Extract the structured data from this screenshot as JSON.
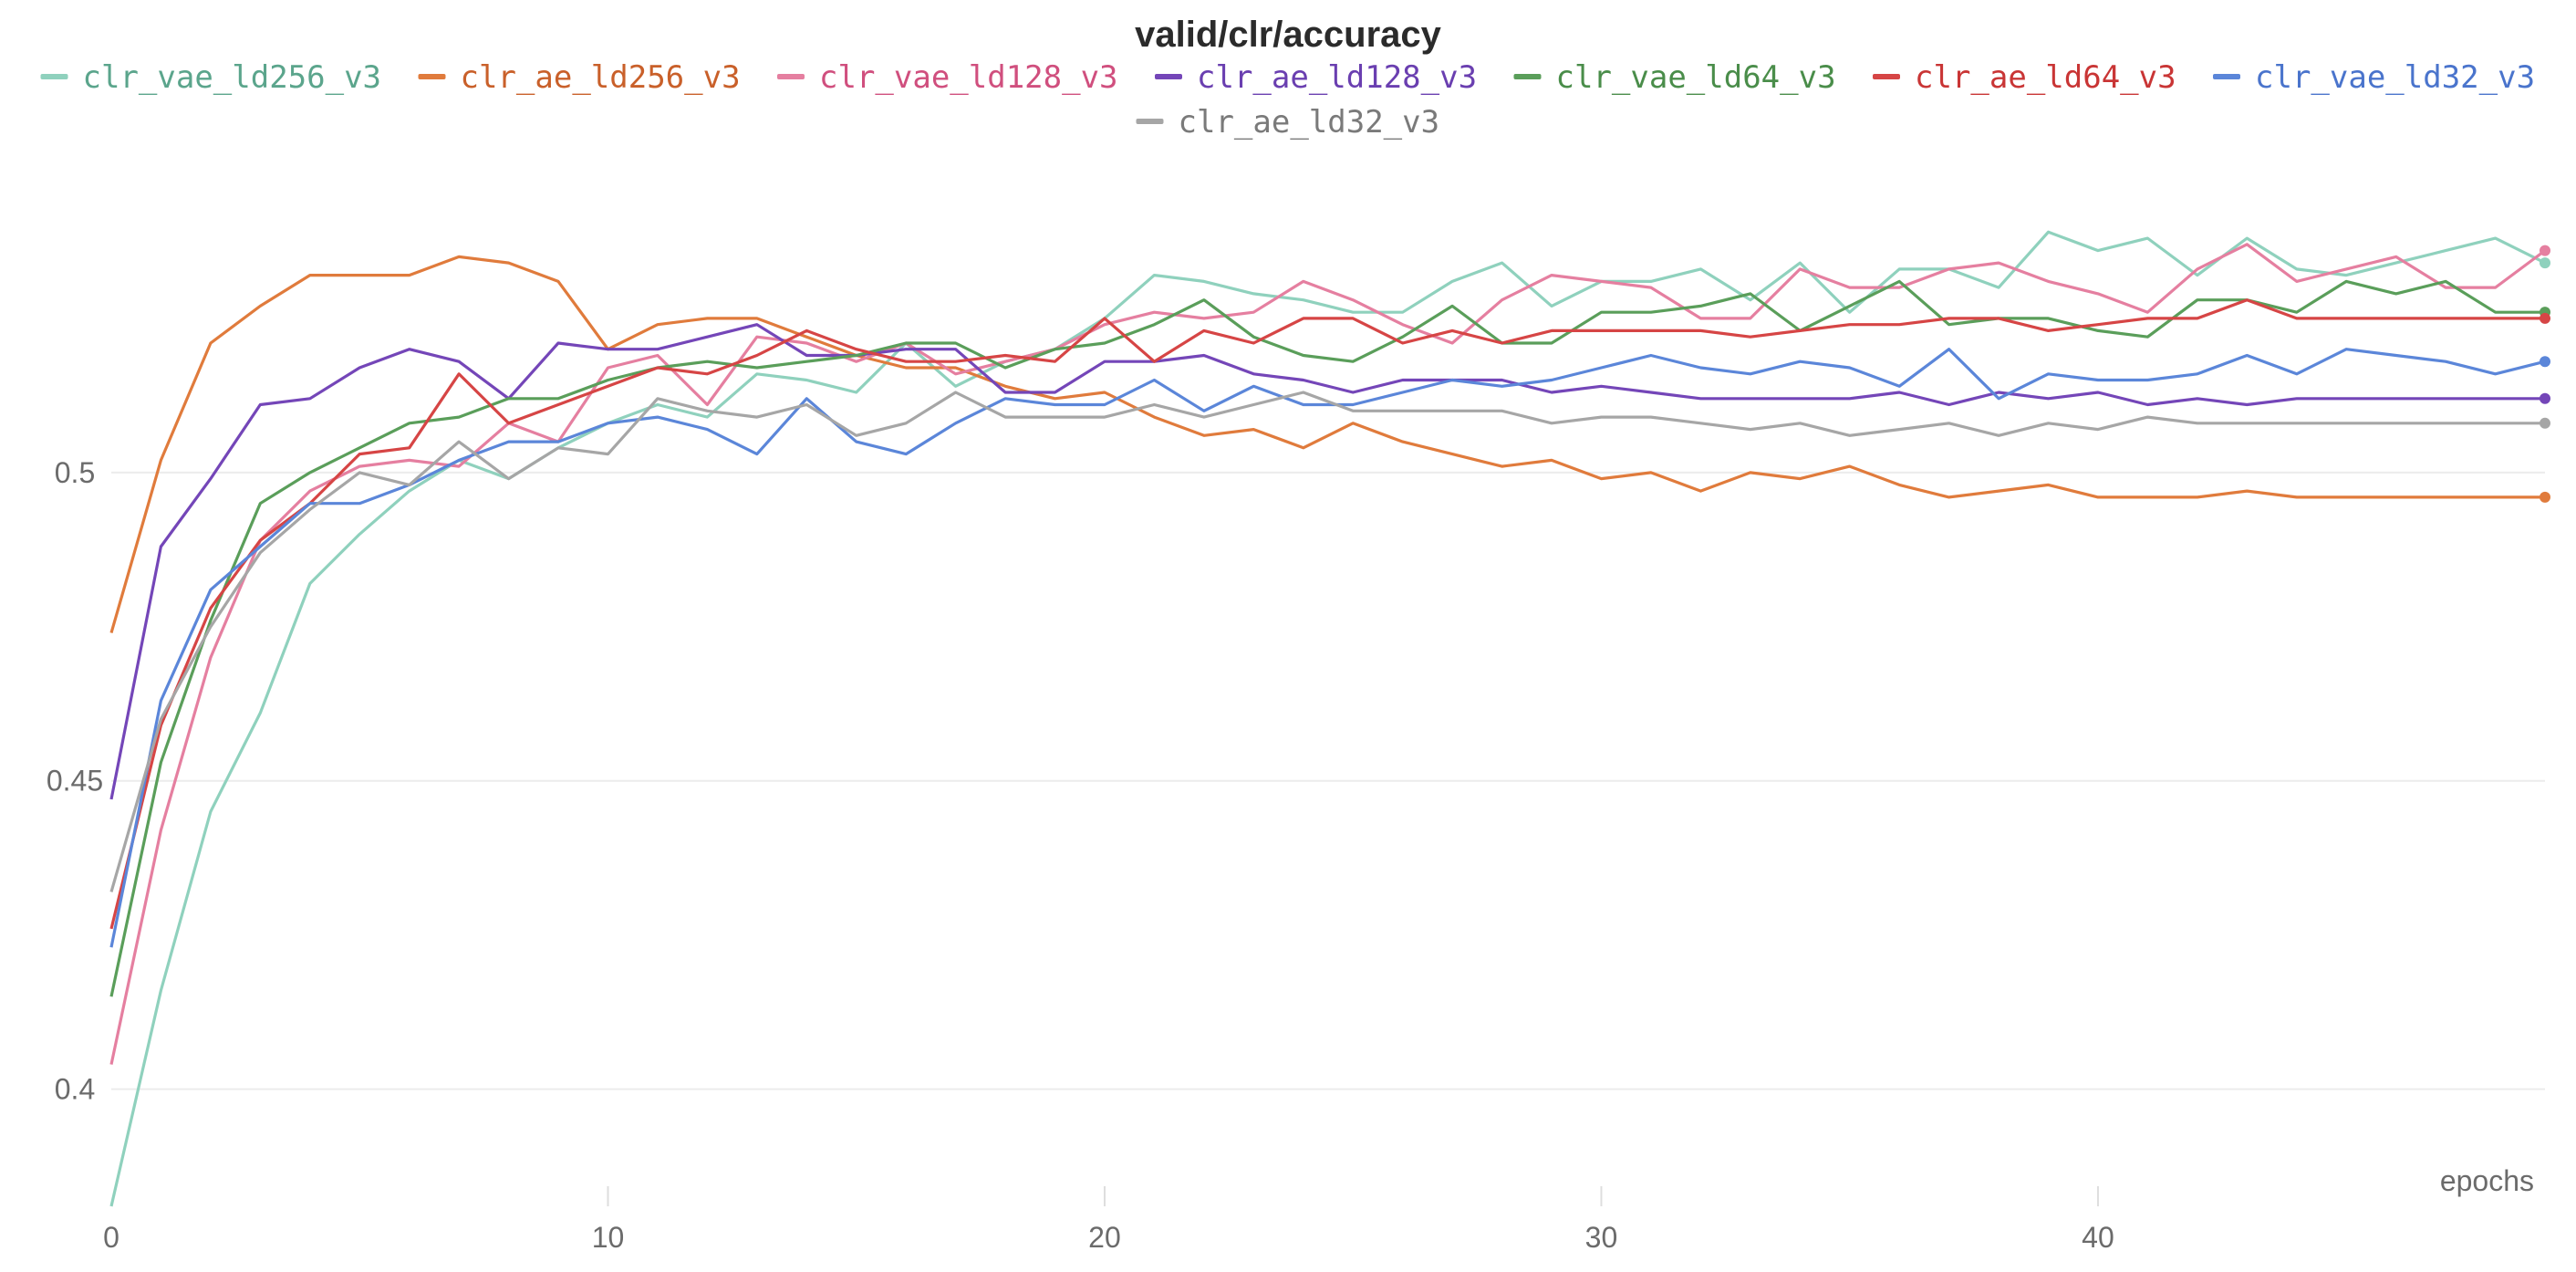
{
  "chart_data": {
    "type": "line",
    "title": "valid/clr/accuracy",
    "xlabel": "epochs",
    "ylabel": "",
    "xlim": [
      0,
      49
    ],
    "ylim": [
      0.381,
      0.55
    ],
    "x_ticks": [
      0,
      10,
      20,
      30,
      40
    ],
    "y_ticks": [
      0.4,
      0.45,
      0.5
    ],
    "x_tick_labels": [
      "0",
      "10",
      "20",
      "30",
      "40"
    ],
    "y_tick_labels": [
      "0.4",
      "0.45",
      "0.5"
    ],
    "grid": true,
    "legend_position": "top",
    "x": [
      0,
      1,
      2,
      3,
      4,
      5,
      6,
      7,
      8,
      9,
      10,
      11,
      12,
      13,
      14,
      15,
      16,
      17,
      18,
      19,
      20,
      21,
      22,
      23,
      24,
      25,
      26,
      27,
      28,
      29,
      30,
      31,
      32,
      33,
      34,
      35,
      36,
      37,
      38,
      39,
      40,
      41,
      42,
      43,
      44,
      45,
      46,
      47,
      48,
      49
    ],
    "series": [
      {
        "name": "clr_vae_ld256_v3",
        "color": "#8fd1bd",
        "text_color": "#5ba58c",
        "values": [
          0.381,
          0.416,
          0.445,
          0.461,
          0.482,
          0.49,
          0.497,
          0.502,
          0.499,
          0.504,
          0.508,
          0.511,
          0.509,
          0.516,
          0.515,
          0.513,
          0.521,
          0.514,
          0.518,
          0.52,
          0.525,
          0.532,
          0.531,
          0.529,
          0.528,
          0.526,
          0.526,
          0.531,
          0.534,
          0.527,
          0.531,
          0.531,
          0.533,
          0.528,
          0.534,
          0.526,
          0.533,
          0.533,
          0.53,
          0.539,
          0.536,
          0.538,
          0.532,
          0.538,
          0.533,
          0.532,
          0.534,
          0.536,
          0.538,
          0.534
        ]
      },
      {
        "name": "clr_ae_ld256_v3",
        "color": "#e07b3c",
        "text_color": "#c9602a",
        "values": [
          0.474,
          0.502,
          0.521,
          0.527,
          0.532,
          0.532,
          0.532,
          0.535,
          0.534,
          0.531,
          0.52,
          0.524,
          0.525,
          0.525,
          0.522,
          0.519,
          0.517,
          0.517,
          0.514,
          0.512,
          0.513,
          0.509,
          0.506,
          0.507,
          0.504,
          0.508,
          0.505,
          0.503,
          0.501,
          0.502,
          0.499,
          0.5,
          0.497,
          0.5,
          0.499,
          0.501,
          0.498,
          0.496,
          0.497,
          0.498,
          0.496,
          0.496,
          0.496,
          0.497,
          0.496,
          0.496,
          0.496,
          0.496,
          0.496,
          0.496
        ]
      },
      {
        "name": "clr_vae_ld128_v3",
        "color": "#e57fa0",
        "text_color": "#d04f7e",
        "values": [
          0.404,
          0.442,
          0.47,
          0.489,
          0.497,
          0.501,
          0.502,
          0.501,
          0.508,
          0.505,
          0.517,
          0.519,
          0.511,
          0.522,
          0.521,
          0.518,
          0.521,
          0.516,
          0.518,
          0.52,
          0.524,
          0.526,
          0.525,
          0.526,
          0.531,
          0.528,
          0.524,
          0.521,
          0.528,
          0.532,
          0.531,
          0.53,
          0.525,
          0.525,
          0.533,
          0.53,
          0.53,
          0.533,
          0.534,
          0.531,
          0.529,
          0.526,
          0.533,
          0.537,
          0.531,
          0.533,
          0.535,
          0.53,
          0.53,
          0.536
        ]
      },
      {
        "name": "clr_ae_ld128_v3",
        "color": "#7446b8",
        "text_color": "#6a3fb0",
        "values": [
          0.447,
          0.488,
          0.499,
          0.511,
          0.512,
          0.517,
          0.52,
          0.518,
          0.512,
          0.521,
          0.52,
          0.52,
          0.522,
          0.524,
          0.519,
          0.519,
          0.52,
          0.52,
          0.513,
          0.513,
          0.518,
          0.518,
          0.519,
          0.516,
          0.515,
          0.513,
          0.515,
          0.515,
          0.515,
          0.513,
          0.514,
          0.513,
          0.512,
          0.512,
          0.512,
          0.512,
          0.513,
          0.511,
          0.513,
          0.512,
          0.513,
          0.511,
          0.512,
          0.511,
          0.512,
          0.512,
          0.512,
          0.512,
          0.512,
          0.512
        ]
      },
      {
        "name": "clr_vae_ld64_v3",
        "color": "#5a9e5a",
        "text_color": "#4a8d4a",
        "values": [
          0.415,
          0.453,
          0.476,
          0.495,
          0.5,
          0.504,
          0.508,
          0.509,
          0.512,
          0.512,
          0.515,
          0.517,
          0.518,
          0.517,
          0.518,
          0.519,
          0.521,
          0.521,
          0.517,
          0.52,
          0.521,
          0.524,
          0.528,
          0.522,
          0.519,
          0.518,
          0.522,
          0.527,
          0.521,
          0.521,
          0.526,
          0.526,
          0.527,
          0.529,
          0.523,
          0.527,
          0.531,
          0.524,
          0.525,
          0.525,
          0.523,
          0.522,
          0.528,
          0.528,
          0.526,
          0.531,
          0.529,
          0.531,
          0.526,
          0.526
        ]
      },
      {
        "name": "clr_ae_ld64_v3",
        "color": "#d64545",
        "text_color": "#c93535",
        "values": [
          0.426,
          0.459,
          0.478,
          0.489,
          0.495,
          0.503,
          0.504,
          0.516,
          0.508,
          0.511,
          0.514,
          0.517,
          0.516,
          0.519,
          0.523,
          0.52,
          0.518,
          0.518,
          0.519,
          0.518,
          0.525,
          0.518,
          0.523,
          0.521,
          0.525,
          0.525,
          0.521,
          0.523,
          0.521,
          0.523,
          0.523,
          0.523,
          0.523,
          0.522,
          0.523,
          0.524,
          0.524,
          0.525,
          0.525,
          0.523,
          0.524,
          0.525,
          0.525,
          0.528,
          0.525,
          0.525,
          0.525,
          0.525,
          0.525,
          0.525
        ]
      },
      {
        "name": "clr_vae_ld32_v3",
        "color": "#5b86d9",
        "text_color": "#4a74cc",
        "values": [
          0.423,
          0.463,
          0.481,
          0.488,
          0.495,
          0.495,
          0.498,
          0.502,
          0.505,
          0.505,
          0.508,
          0.509,
          0.507,
          0.503,
          0.512,
          0.505,
          0.503,
          0.508,
          0.512,
          0.511,
          0.511,
          0.515,
          0.51,
          0.514,
          0.511,
          0.511,
          0.513,
          0.515,
          0.514,
          0.515,
          0.517,
          0.519,
          0.517,
          0.516,
          0.518,
          0.517,
          0.514,
          0.52,
          0.512,
          0.516,
          0.515,
          0.515,
          0.516,
          0.519,
          0.516,
          0.52,
          0.519,
          0.518,
          0.516,
          0.518
        ]
      },
      {
        "name": "clr_ae_ld32_v3",
        "color": "#a6a6a6",
        "text_color": "#7a7a7a",
        "values": [
          0.432,
          0.46,
          0.475,
          0.487,
          0.494,
          0.5,
          0.498,
          0.505,
          0.499,
          0.504,
          0.503,
          0.512,
          0.51,
          0.509,
          0.511,
          0.506,
          0.508,
          0.513,
          0.509,
          0.509,
          0.509,
          0.511,
          0.509,
          0.511,
          0.513,
          0.51,
          0.51,
          0.51,
          0.51,
          0.508,
          0.509,
          0.509,
          0.508,
          0.507,
          0.508,
          0.506,
          0.507,
          0.508,
          0.506,
          0.508,
          0.507,
          0.509,
          0.508,
          0.508,
          0.508,
          0.508,
          0.508,
          0.508,
          0.508,
          0.508
        ]
      }
    ]
  }
}
